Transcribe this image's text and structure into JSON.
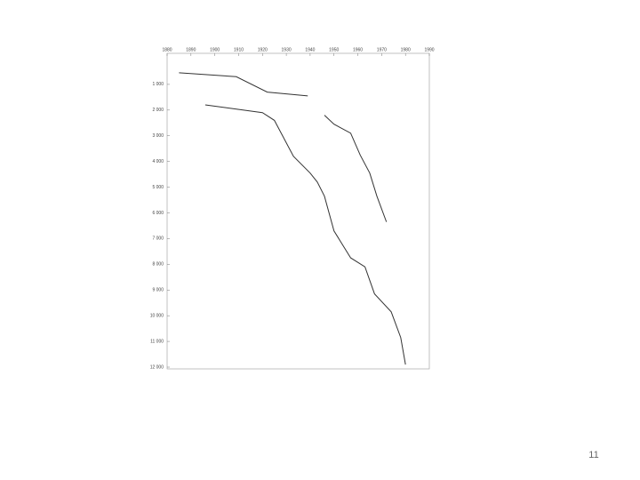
{
  "chart_data": {
    "type": "line",
    "xlim": [
      1880,
      1990
    ],
    "xticks": [
      1880,
      1890,
      1900,
      1910,
      1920,
      1930,
      1940,
      1950,
      1960,
      1970,
      1980,
      1990
    ],
    "ylim": [
      0,
      12000
    ],
    "yticks": [
      {
        "value": 1000,
        "label": "1 000"
      },
      {
        "value": 2000,
        "label": "2 000"
      },
      {
        "value": 3000,
        "label": "3 000"
      },
      {
        "value": 4000,
        "label": "4 000"
      },
      {
        "value": 5000,
        "label": "5 000"
      },
      {
        "value": 6000,
        "label": "6 000"
      },
      {
        "value": 7000,
        "label": "7 000"
      },
      {
        "value": 8000,
        "label": "8 000"
      },
      {
        "value": 9000,
        "label": "9 000"
      },
      {
        "value": 10000,
        "label": "10 000"
      },
      {
        "value": 11000,
        "label": "11 000"
      },
      {
        "value": 12000,
        "label": "12 000"
      }
    ],
    "y_inverted": true,
    "series": [
      {
        "color": "#333333",
        "x": [
          1885,
          1909,
          1922,
          1939
        ],
        "values": [
          550,
          700,
          1300,
          1450
        ]
      },
      {
        "color": "#333333",
        "x": [
          1896,
          1920,
          1925,
          1933,
          1940,
          1943,
          1946,
          1950,
          1957,
          1963,
          1967,
          1974,
          1978,
          1980
        ],
        "values": [
          1800,
          2100,
          2400,
          3800,
          4450,
          4800,
          5350,
          6700,
          7750,
          8100,
          9150,
          9850,
          10850,
          11900
        ]
      },
      {
        "color": "#333333",
        "x": [
          1946,
          1950,
          1957,
          1961,
          1965,
          1968,
          1972
        ],
        "values": [
          2200,
          2550,
          2900,
          3750,
          4450,
          5350,
          6350
        ]
      }
    ]
  },
  "page_number": "11"
}
